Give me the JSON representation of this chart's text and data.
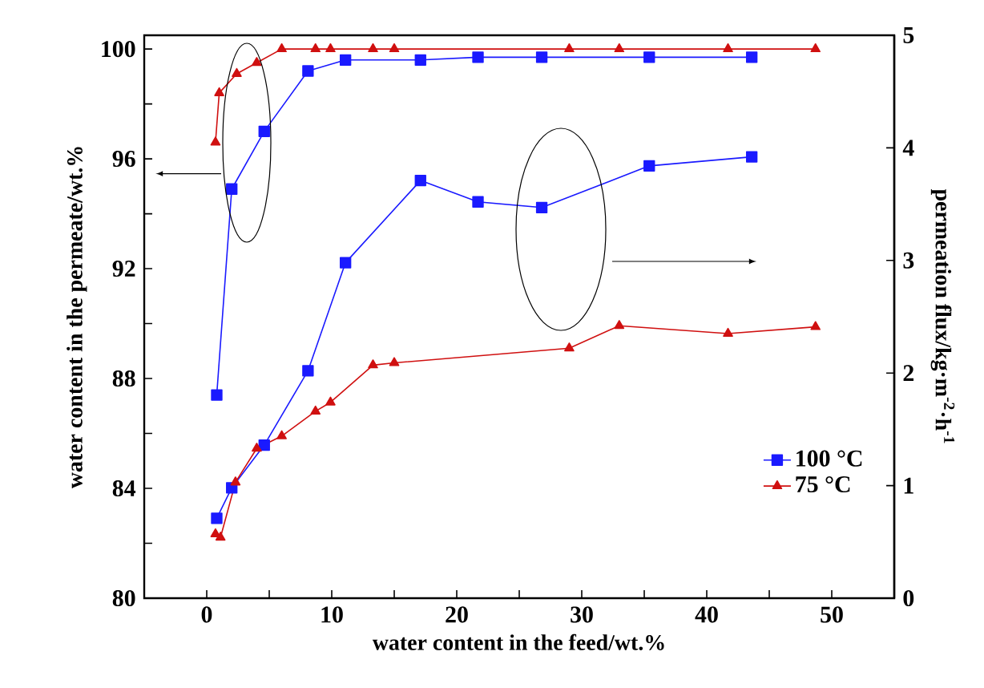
{
  "chart_data": {
    "type": "line",
    "xlabel": "water content in the feed/wt.%",
    "ylabel": "water content in the permeate/wt.%",
    "y2label": "permeation flux/kg·m$^{-2}$·h$^{-1}$",
    "xlim": [
      -5,
      55
    ],
    "xticks": [
      0,
      {
        "value": 5,
        "label": null
      },
      10,
      {
        "value": 15,
        "label": null
      },
      20,
      {
        "value": 25,
        "label": null
      },
      30,
      {
        "value": 35,
        "label": null
      },
      40,
      {
        "value": 45,
        "label": null
      },
      50
    ],
    "ylim": [
      80,
      100.5
    ],
    "yticks": [
      80,
      {
        "value": 82,
        "label": null
      },
      84,
      {
        "value": 86,
        "label": null
      },
      88,
      {
        "value": 90,
        "label": null
      },
      92,
      {
        "value": 94,
        "label": null
      },
      96,
      {
        "value": 98,
        "label": null
      },
      100
    ],
    "y2lim": [
      0,
      5
    ],
    "y2ticks": [
      0,
      1,
      2,
      3,
      4,
      5
    ],
    "legend": "bottom right",
    "line_style": "solid",
    "series": [
      {
        "name": "100 °C",
        "color": "#1a1aff",
        "marker": "square",
        "x": [
          0.8,
          2.0,
          4.6,
          8.1,
          11.1,
          17.1,
          21.7,
          26.8,
          35.4,
          43.6
        ],
        "values": [
          87.4,
          94.9,
          97.0,
          99.2,
          99.6,
          99.6,
          99.7,
          99.7,
          99.7,
          99.7
        ]
      },
      {
        "name": "75 °C",
        "color": "#d01010",
        "marker": "triangle",
        "x": [
          0.7,
          1.0,
          2.4,
          4.0,
          6.0,
          8.7,
          9.9,
          13.3,
          15.0,
          29.0,
          33.0,
          41.7,
          48.7
        ],
        "values": [
          96.6,
          98.4,
          99.1,
          99.5,
          100.0,
          100.0,
          100.0,
          100.0,
          100.0,
          100.0,
          100.0,
          100.0,
          100.0
        ]
      },
      {
        "color": "#1a1aff",
        "marker": "square",
        "axis": "y2",
        "x": [
          0.8,
          2.0,
          4.6,
          8.1,
          11.1,
          17.1,
          21.7,
          26.8,
          35.4,
          43.6
        ],
        "values": [
          0.71,
          0.98,
          1.36,
          2.02,
          2.98,
          3.71,
          3.52,
          3.47,
          3.84,
          3.92
        ]
      },
      {
        "color": "#d01010",
        "marker": "triangle",
        "axis": "y2",
        "x": [
          0.7,
          1.1,
          2.3,
          4.0,
          6.0,
          8.7,
          9.9,
          13.3,
          15.0,
          29.0,
          33.0,
          41.7,
          48.7
        ],
        "values": [
          0.57,
          0.54,
          1.03,
          1.33,
          1.44,
          1.66,
          1.74,
          2.07,
          2.09,
          2.22,
          2.42,
          2.35,
          2.41
        ]
      }
    ]
  }
}
